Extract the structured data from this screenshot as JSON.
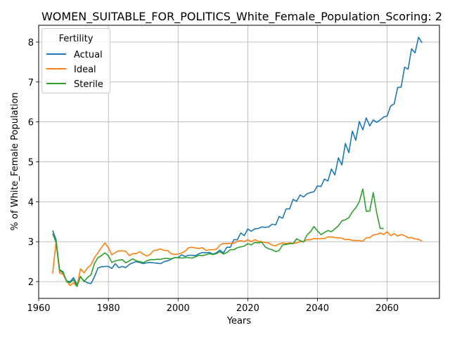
{
  "chart_data": {
    "type": "line",
    "title": "WOMEN_SUITABLE_FOR_POLITICS_White_Female_Population_Scoring: 2",
    "xlabel": "Years",
    "ylabel": "% of White_Female Population",
    "xlim": [
      1960,
      2075
    ],
    "ylim": [
      1.58,
      8.42
    ],
    "xticks": [
      1960,
      1980,
      2000,
      2020,
      2040,
      2060
    ],
    "yticks": [
      2,
      3,
      4,
      5,
      6,
      7,
      8
    ],
    "grid": true,
    "legend": {
      "title": "Fertility",
      "position": "top-left"
    },
    "series": [
      {
        "name": "Actual",
        "color": "#1f77b4",
        "points": [
          [
            1964,
            3.28
          ],
          [
            1965,
            3.05
          ],
          [
            1966,
            2.28
          ],
          [
            1967,
            2.22
          ],
          [
            1968,
            2.02
          ],
          [
            1969,
            2.0
          ],
          [
            1970,
            2.1
          ],
          [
            1971,
            1.93
          ],
          [
            1972,
            2.12
          ],
          [
            1973,
            2.02
          ],
          [
            1974,
            1.97
          ],
          [
            1975,
            1.95
          ],
          [
            1976,
            2.12
          ],
          [
            1977,
            2.34
          ],
          [
            1978,
            2.37
          ],
          [
            1979,
            2.38
          ],
          [
            1980,
            2.38
          ],
          [
            1981,
            2.33
          ],
          [
            1982,
            2.45
          ],
          [
            1983,
            2.35
          ],
          [
            1984,
            2.38
          ],
          [
            1985,
            2.35
          ],
          [
            1986,
            2.43
          ],
          [
            1987,
            2.47
          ],
          [
            1988,
            2.5
          ],
          [
            1989,
            2.48
          ],
          [
            1990,
            2.45
          ],
          [
            1991,
            2.47
          ],
          [
            1992,
            2.48
          ],
          [
            1993,
            2.47
          ],
          [
            1994,
            2.46
          ],
          [
            1995,
            2.45
          ],
          [
            1996,
            2.5
          ],
          [
            1997,
            2.52
          ],
          [
            1998,
            2.56
          ],
          [
            1999,
            2.6
          ],
          [
            2000,
            2.6
          ],
          [
            2001,
            2.67
          ],
          [
            2002,
            2.63
          ],
          [
            2003,
            2.66
          ],
          [
            2004,
            2.66
          ],
          [
            2005,
            2.65
          ],
          [
            2006,
            2.7
          ],
          [
            2007,
            2.73
          ],
          [
            2008,
            2.72
          ],
          [
            2009,
            2.73
          ],
          [
            2010,
            2.69
          ],
          [
            2011,
            2.72
          ],
          [
            2012,
            2.79
          ],
          [
            2013,
            2.72
          ],
          [
            2014,
            2.86
          ],
          [
            2015,
            2.86
          ],
          [
            2016,
            3.05
          ],
          [
            2017,
            3.05
          ],
          [
            2018,
            3.22
          ],
          [
            2019,
            3.15
          ],
          [
            2020,
            3.32
          ],
          [
            2021,
            3.26
          ],
          [
            2022,
            3.32
          ],
          [
            2023,
            3.33
          ],
          [
            2024,
            3.37
          ],
          [
            2025,
            3.36
          ],
          [
            2026,
            3.37
          ],
          [
            2027,
            3.44
          ],
          [
            2028,
            3.42
          ],
          [
            2029,
            3.63
          ],
          [
            2030,
            3.59
          ],
          [
            2031,
            3.82
          ],
          [
            2032,
            3.82
          ],
          [
            2033,
            4.06
          ],
          [
            2034,
            4.01
          ],
          [
            2035,
            4.17
          ],
          [
            2036,
            4.12
          ],
          [
            2037,
            4.2
          ],
          [
            2038,
            4.23
          ],
          [
            2039,
            4.25
          ],
          [
            2040,
            4.4
          ],
          [
            2041,
            4.38
          ],
          [
            2042,
            4.57
          ],
          [
            2043,
            4.52
          ],
          [
            2044,
            4.82
          ],
          [
            2045,
            4.67
          ],
          [
            2046,
            5.1
          ],
          [
            2047,
            4.92
          ],
          [
            2048,
            5.46
          ],
          [
            2049,
            5.23
          ],
          [
            2050,
            5.77
          ],
          [
            2051,
            5.54
          ],
          [
            2052,
            6.01
          ],
          [
            2053,
            5.8
          ],
          [
            2054,
            6.1
          ],
          [
            2055,
            5.9
          ],
          [
            2056,
            6.05
          ],
          [
            2057,
            5.99
          ],
          [
            2058,
            6.05
          ],
          [
            2059,
            6.12
          ],
          [
            2060,
            6.15
          ],
          [
            2061,
            6.4
          ],
          [
            2062,
            6.45
          ],
          [
            2063,
            6.86
          ],
          [
            2064,
            6.87
          ],
          [
            2065,
            7.37
          ],
          [
            2066,
            7.32
          ],
          [
            2067,
            7.83
          ],
          [
            2068,
            7.73
          ],
          [
            2069,
            8.12
          ],
          [
            2070,
            7.98
          ]
        ]
      },
      {
        "name": "Ideal",
        "color": "#ff7f0e",
        "points": [
          [
            1964,
            2.2
          ],
          [
            1965,
            3.0
          ],
          [
            1966,
            2.22
          ],
          [
            1967,
            2.18
          ],
          [
            1968,
            2.02
          ],
          [
            1969,
            1.9
          ],
          [
            1970,
            1.97
          ],
          [
            1971,
            1.88
          ],
          [
            1972,
            2.32
          ],
          [
            1973,
            2.22
          ],
          [
            1974,
            2.34
          ],
          [
            1975,
            2.42
          ],
          [
            1976,
            2.6
          ],
          [
            1977,
            2.72
          ],
          [
            1978,
            2.85
          ],
          [
            1979,
            2.97
          ],
          [
            1980,
            2.85
          ],
          [
            1981,
            2.67
          ],
          [
            1982,
            2.73
          ],
          [
            1983,
            2.77
          ],
          [
            1984,
            2.77
          ],
          [
            1985,
            2.76
          ],
          [
            1986,
            2.65
          ],
          [
            1987,
            2.7
          ],
          [
            1988,
            2.7
          ],
          [
            1989,
            2.75
          ],
          [
            1990,
            2.69
          ],
          [
            1991,
            2.64
          ],
          [
            1992,
            2.68
          ],
          [
            1993,
            2.78
          ],
          [
            1994,
            2.79
          ],
          [
            1995,
            2.82
          ],
          [
            1996,
            2.78
          ],
          [
            1997,
            2.78
          ],
          [
            1998,
            2.7
          ],
          [
            1999,
            2.68
          ],
          [
            2000,
            2.69
          ],
          [
            2001,
            2.72
          ],
          [
            2002,
            2.76
          ],
          [
            2003,
            2.85
          ],
          [
            2004,
            2.86
          ],
          [
            2005,
            2.84
          ],
          [
            2006,
            2.83
          ],
          [
            2007,
            2.85
          ],
          [
            2008,
            2.78
          ],
          [
            2009,
            2.8
          ],
          [
            2010,
            2.8
          ],
          [
            2011,
            2.81
          ],
          [
            2012,
            2.91
          ],
          [
            2013,
            2.96
          ],
          [
            2014,
            2.95
          ],
          [
            2015,
            2.96
          ],
          [
            2016,
            2.96
          ],
          [
            2017,
            3.01
          ],
          [
            2018,
            3.03
          ],
          [
            2019,
            3.0
          ],
          [
            2020,
            3.05
          ],
          [
            2021,
            3.0
          ],
          [
            2022,
            3.05
          ],
          [
            2023,
            3.01
          ],
          [
            2024,
            3.0
          ],
          [
            2025,
            2.98
          ],
          [
            2026,
            2.97
          ],
          [
            2027,
            2.91
          ],
          [
            2028,
            2.9
          ],
          [
            2029,
            2.94
          ],
          [
            2030,
            2.97
          ],
          [
            2031,
            2.95
          ],
          [
            2032,
            2.97
          ],
          [
            2033,
            2.96
          ],
          [
            2034,
            2.97
          ],
          [
            2035,
            3.0
          ],
          [
            2036,
            3.0
          ],
          [
            2037,
            3.05
          ],
          [
            2038,
            3.05
          ],
          [
            2039,
            3.08
          ],
          [
            2040,
            3.07
          ],
          [
            2041,
            3.08
          ],
          [
            2042,
            3.08
          ],
          [
            2043,
            3.12
          ],
          [
            2044,
            3.12
          ],
          [
            2045,
            3.1
          ],
          [
            2046,
            3.1
          ],
          [
            2047,
            3.09
          ],
          [
            2048,
            3.05
          ],
          [
            2049,
            3.06
          ],
          [
            2050,
            3.03
          ],
          [
            2051,
            3.03
          ],
          [
            2052,
            3.03
          ],
          [
            2053,
            3.01
          ],
          [
            2054,
            3.1
          ],
          [
            2055,
            3.1
          ],
          [
            2056,
            3.17
          ],
          [
            2057,
            3.18
          ],
          [
            2058,
            3.22
          ],
          [
            2059,
            3.18
          ],
          [
            2060,
            3.25
          ],
          [
            2061,
            3.15
          ],
          [
            2062,
            3.2
          ],
          [
            2063,
            3.14
          ],
          [
            2064,
            3.18
          ],
          [
            2065,
            3.15
          ],
          [
            2066,
            3.1
          ],
          [
            2067,
            3.1
          ],
          [
            2068,
            3.07
          ],
          [
            2069,
            3.06
          ],
          [
            2070,
            3.01
          ]
        ]
      },
      {
        "name": "Sterile",
        "color": "#2ca02c",
        "points": [
          [
            1964,
            3.2
          ],
          [
            1965,
            2.98
          ],
          [
            1966,
            2.3
          ],
          [
            1967,
            2.25
          ],
          [
            1968,
            2.0
          ],
          [
            1969,
            1.97
          ],
          [
            1970,
            2.05
          ],
          [
            1971,
            1.88
          ],
          [
            1972,
            2.13
          ],
          [
            1973,
            2.0
          ],
          [
            1974,
            2.1
          ],
          [
            1975,
            2.17
          ],
          [
            1976,
            2.45
          ],
          [
            1977,
            2.6
          ],
          [
            1978,
            2.65
          ],
          [
            1979,
            2.72
          ],
          [
            1980,
            2.65
          ],
          [
            1981,
            2.48
          ],
          [
            1982,
            2.52
          ],
          [
            1983,
            2.54
          ],
          [
            1984,
            2.55
          ],
          [
            1985,
            2.47
          ],
          [
            1986,
            2.52
          ],
          [
            1987,
            2.57
          ],
          [
            1988,
            2.52
          ],
          [
            1989,
            2.5
          ],
          [
            1990,
            2.47
          ],
          [
            1991,
            2.52
          ],
          [
            1992,
            2.55
          ],
          [
            1993,
            2.55
          ],
          [
            1994,
            2.56
          ],
          [
            1995,
            2.56
          ],
          [
            1996,
            2.58
          ],
          [
            1997,
            2.58
          ],
          [
            1998,
            2.57
          ],
          [
            1999,
            2.6
          ],
          [
            2000,
            2.6
          ],
          [
            2001,
            2.59
          ],
          [
            2002,
            2.6
          ],
          [
            2003,
            2.6
          ],
          [
            2004,
            2.59
          ],
          [
            2005,
            2.62
          ],
          [
            2006,
            2.66
          ],
          [
            2007,
            2.65
          ],
          [
            2008,
            2.67
          ],
          [
            2009,
            2.7
          ],
          [
            2010,
            2.68
          ],
          [
            2011,
            2.7
          ],
          [
            2012,
            2.75
          ],
          [
            2013,
            2.69
          ],
          [
            2014,
            2.73
          ],
          [
            2015,
            2.8
          ],
          [
            2016,
            2.8
          ],
          [
            2017,
            2.85
          ],
          [
            2018,
            2.87
          ],
          [
            2019,
            2.89
          ],
          [
            2020,
            2.95
          ],
          [
            2021,
            2.92
          ],
          [
            2022,
            2.98
          ],
          [
            2023,
            2.97
          ],
          [
            2024,
            2.99
          ],
          [
            2025,
            2.87
          ],
          [
            2026,
            2.82
          ],
          [
            2027,
            2.8
          ],
          [
            2028,
            2.75
          ],
          [
            2029,
            2.78
          ],
          [
            2030,
            2.92
          ],
          [
            2031,
            2.93
          ],
          [
            2032,
            2.95
          ],
          [
            2033,
            2.95
          ],
          [
            2034,
            3.07
          ],
          [
            2035,
            3.03
          ],
          [
            2036,
            2.99
          ],
          [
            2037,
            3.17
          ],
          [
            2038,
            3.25
          ],
          [
            2039,
            3.38
          ],
          [
            2040,
            3.27
          ],
          [
            2041,
            3.18
          ],
          [
            2042,
            3.23
          ],
          [
            2043,
            3.28
          ],
          [
            2044,
            3.25
          ],
          [
            2045,
            3.32
          ],
          [
            2046,
            3.4
          ],
          [
            2047,
            3.52
          ],
          [
            2048,
            3.55
          ],
          [
            2049,
            3.6
          ],
          [
            2050,
            3.75
          ],
          [
            2051,
            3.85
          ],
          [
            2052,
            4.0
          ],
          [
            2053,
            4.32
          ],
          [
            2054,
            3.76
          ],
          [
            2055,
            3.77
          ],
          [
            2056,
            4.23
          ],
          [
            2057,
            3.72
          ],
          [
            2058,
            3.33
          ],
          [
            2059,
            3.33
          ]
        ]
      }
    ]
  }
}
